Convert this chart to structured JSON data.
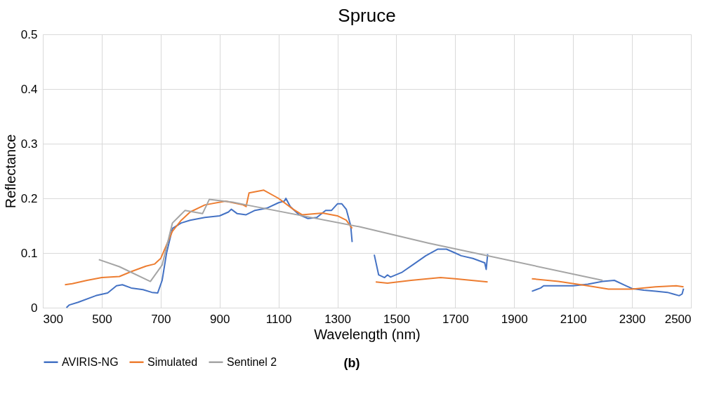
{
  "chart_data": {
    "type": "line",
    "title": "Spruce",
    "xlabel": "Wavelength (nm)",
    "ylabel": "Reflectance",
    "xlim": [
      300,
      2500
    ],
    "xticks": [
      300,
      500,
      700,
      900,
      1100,
      1300,
      1500,
      1700,
      1900,
      2100,
      2300,
      2500
    ],
    "ylim": [
      0,
      0.5
    ],
    "yticks": [
      0,
      0.1,
      0.2,
      0.3,
      0.4,
      0.5
    ],
    "grid": true,
    "legend": "bottom",
    "marker": "none",
    "line_style": "solid",
    "annotations": [
      "(b)"
    ],
    "series": [
      {
        "name": "AVIRIS-NG",
        "color": "#4472c4",
        "x": [
          380,
          390,
          420,
          480,
          520,
          550,
          570,
          600,
          640,
          670,
          690,
          705,
          720,
          740,
          770,
          800,
          850,
          900,
          930,
          940,
          960,
          990,
          1020,
          1060,
          1100,
          1120,
          1125,
          1140,
          1170,
          1200,
          1230,
          1260,
          1280,
          1300,
          1315,
          1330,
          1345,
          1350,
          1390,
          1425,
          1440,
          1460,
          1470,
          1480,
          1520,
          1560,
          1600,
          1640,
          1670,
          1700,
          1720,
          1760,
          1800,
          1805,
          1810,
          1880,
          1960,
          1990,
          2000,
          2050,
          2100,
          2150,
          2200,
          2240,
          2280,
          2300,
          2340,
          2380,
          2420,
          2440,
          2460,
          2470,
          2475
        ],
        "values": [
          0.0,
          0.005,
          0.01,
          0.022,
          0.027,
          0.04,
          0.042,
          0.036,
          0.033,
          0.028,
          0.027,
          0.05,
          0.1,
          0.145,
          0.155,
          0.16,
          0.165,
          0.168,
          0.175,
          0.18,
          0.172,
          0.17,
          0.178,
          0.182,
          0.192,
          0.195,
          0.2,
          0.185,
          0.17,
          0.163,
          0.165,
          0.178,
          0.178,
          0.19,
          0.19,
          0.18,
          0.15,
          0.12,
          null,
          0.097,
          0.06,
          0.055,
          0.06,
          0.056,
          0.065,
          0.08,
          0.095,
          0.107,
          0.107,
          0.1,
          0.095,
          0.09,
          0.082,
          0.07,
          0.098,
          null,
          0.03,
          0.036,
          0.04,
          0.04,
          0.04,
          0.043,
          0.048,
          0.05,
          0.04,
          0.035,
          0.032,
          0.03,
          0.028,
          0.025,
          0.022,
          0.025,
          0.035
        ]
      },
      {
        "name": "Simulated",
        "color": "#ed7d31",
        "x": [
          375,
          400,
          450,
          500,
          560,
          600,
          650,
          680,
          700,
          720,
          740,
          770,
          800,
          850,
          920,
          980,
          990,
          1000,
          1050,
          1100,
          1150,
          1180,
          1250,
          1300,
          1330,
          1350,
          1390,
          1430,
          1470,
          1550,
          1650,
          1700,
          1810,
          1880,
          1960,
          2050,
          2150,
          2220,
          2300,
          2380,
          2450,
          2475
        ],
        "values": [
          0.042,
          0.044,
          0.05,
          0.055,
          0.057,
          0.066,
          0.076,
          0.08,
          0.09,
          0.115,
          0.14,
          0.16,
          0.175,
          0.188,
          0.195,
          0.188,
          0.185,
          0.21,
          0.215,
          0.2,
          0.18,
          0.17,
          0.173,
          0.168,
          0.16,
          0.145,
          null,
          0.047,
          0.045,
          0.05,
          0.055,
          0.053,
          0.047,
          null,
          0.053,
          0.048,
          0.04,
          0.034,
          0.034,
          0.038,
          0.04,
          0.038
        ]
      },
      {
        "name": "Sentinel 2",
        "color": "#a5a5a5",
        "x": [
          490,
          560,
          665,
          705,
          740,
          783,
          842,
          865,
          945,
          1000,
          1375,
          1610,
          2200
        ],
        "values": [
          0.088,
          0.075,
          0.048,
          0.078,
          0.155,
          0.178,
          0.172,
          0.198,
          0.193,
          0.187,
          0.148,
          0.118,
          0.05
        ]
      }
    ]
  }
}
